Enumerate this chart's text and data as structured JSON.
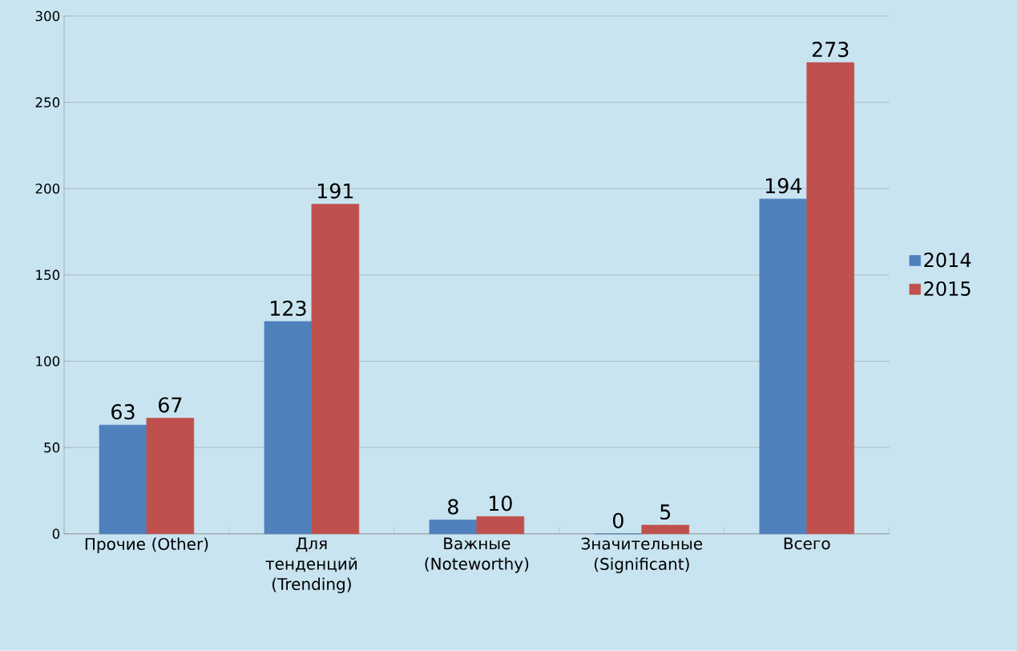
{
  "chart_data": {
    "type": "bar",
    "categories": [
      "Прочие (Other)",
      "Для тенденций (Trending)",
      "Важные (Noteworthy)",
      "Значительные (Significant)",
      "Всего"
    ],
    "series": [
      {
        "name": "2014",
        "color": "#4f81bd",
        "values": [
          63,
          123,
          8,
          0,
          194
        ]
      },
      {
        "name": "2015",
        "color": "#c0504d",
        "values": [
          67,
          191,
          10,
          5,
          273
        ]
      }
    ],
    "ylim": [
      0,
      300
    ],
    "yticks": [
      0,
      50,
      100,
      150,
      200,
      250,
      300
    ],
    "grid": "y",
    "legend": "right",
    "data_labels": true
  }
}
